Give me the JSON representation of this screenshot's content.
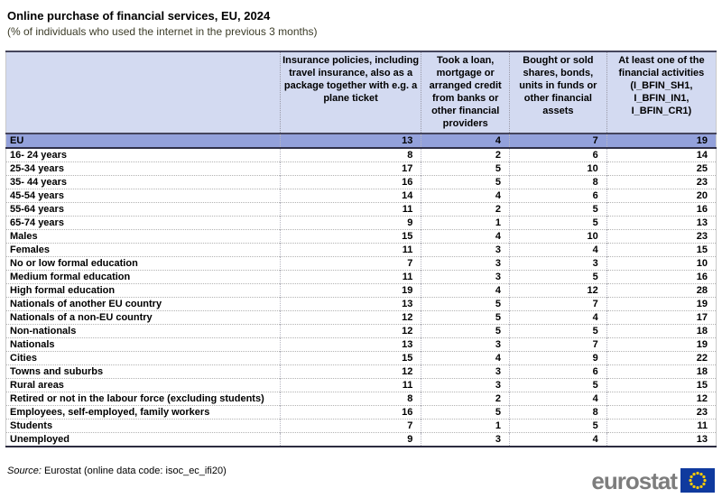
{
  "title": "Online purchase of financial services, EU, 2024",
  "subtitle": "(% of individuals who used the internet in the previous 3 months)",
  "chart_data": {
    "type": "table",
    "title": "Online purchase of financial services, EU, 2024",
    "subtitle": "(% of individuals who used the internet in the previous 3 months)",
    "unit": "% of individuals who used the internet in the previous 3 months",
    "columns": [
      "Insurance policies, including travel insurance, also as a package together with e.g. a plane ticket",
      "Took a loan, mortgage or arranged credit from banks or other financial providers",
      "Bought or sold shares, bonds, units in funds or other financial assets",
      "At least one of the financial activities (I_BFIN_SH1, I_BFIN_IN1, I_BFIN_CR1)"
    ],
    "rows": [
      {
        "label": "EU",
        "values": [
          13,
          4,
          7,
          19
        ],
        "highlight": true
      },
      {
        "label": "16- 24 years",
        "values": [
          8,
          2,
          6,
          14
        ]
      },
      {
        "label": "25-34 years",
        "values": [
          17,
          5,
          10,
          25
        ]
      },
      {
        "label": "35- 44 years",
        "values": [
          16,
          5,
          8,
          23
        ]
      },
      {
        "label": "45-54 years",
        "values": [
          14,
          4,
          6,
          20
        ]
      },
      {
        "label": "55-64 years",
        "values": [
          11,
          2,
          5,
          16
        ]
      },
      {
        "label": "65-74 years",
        "values": [
          9,
          1,
          5,
          13
        ]
      },
      {
        "label": "Males",
        "values": [
          15,
          4,
          10,
          23
        ]
      },
      {
        "label": "Females",
        "values": [
          11,
          3,
          4,
          15
        ]
      },
      {
        "label": "No or low formal education",
        "values": [
          7,
          3,
          3,
          10
        ]
      },
      {
        "label": "Medium formal education",
        "values": [
          11,
          3,
          5,
          16
        ]
      },
      {
        "label": "High formal education",
        "values": [
          19,
          4,
          12,
          28
        ]
      },
      {
        "label": "Nationals of another EU country",
        "values": [
          13,
          5,
          7,
          19
        ]
      },
      {
        "label": "Nationals of a non-EU country",
        "values": [
          12,
          5,
          4,
          17
        ]
      },
      {
        "label": "Non-nationals",
        "values": [
          12,
          5,
          5,
          18
        ]
      },
      {
        "label": "Nationals",
        "values": [
          13,
          3,
          7,
          19
        ]
      },
      {
        "label": "Cities",
        "values": [
          15,
          4,
          9,
          22
        ]
      },
      {
        "label": "Towns and suburbs",
        "values": [
          12,
          3,
          6,
          18
        ]
      },
      {
        "label": "Rural areas",
        "values": [
          11,
          3,
          5,
          15
        ]
      },
      {
        "label": "Retired or not in the labour force (excluding students)",
        "values": [
          8,
          2,
          4,
          12
        ]
      },
      {
        "label": "Employees, self-employed, family workers",
        "values": [
          16,
          5,
          8,
          23
        ]
      },
      {
        "label": "Students",
        "values": [
          7,
          1,
          5,
          11
        ]
      },
      {
        "label": "Unemployed",
        "values": [
          9,
          3,
          4,
          13
        ]
      }
    ]
  },
  "source": {
    "prefix": "Source:",
    "text": "Eurostat (online data code: isoc_ec_ifi20)"
  },
  "logo": {
    "text": "eurostat"
  },
  "colors": {
    "header_bg": "#d3daf1",
    "eu_row_bg": "#93a1db",
    "dark_border": "#45455c",
    "subtitle_text": "#3c3c28",
    "logo_gray": "#7d7d7d",
    "flag_blue": "#0f3a9e",
    "star_yellow": "#ffcc00"
  }
}
